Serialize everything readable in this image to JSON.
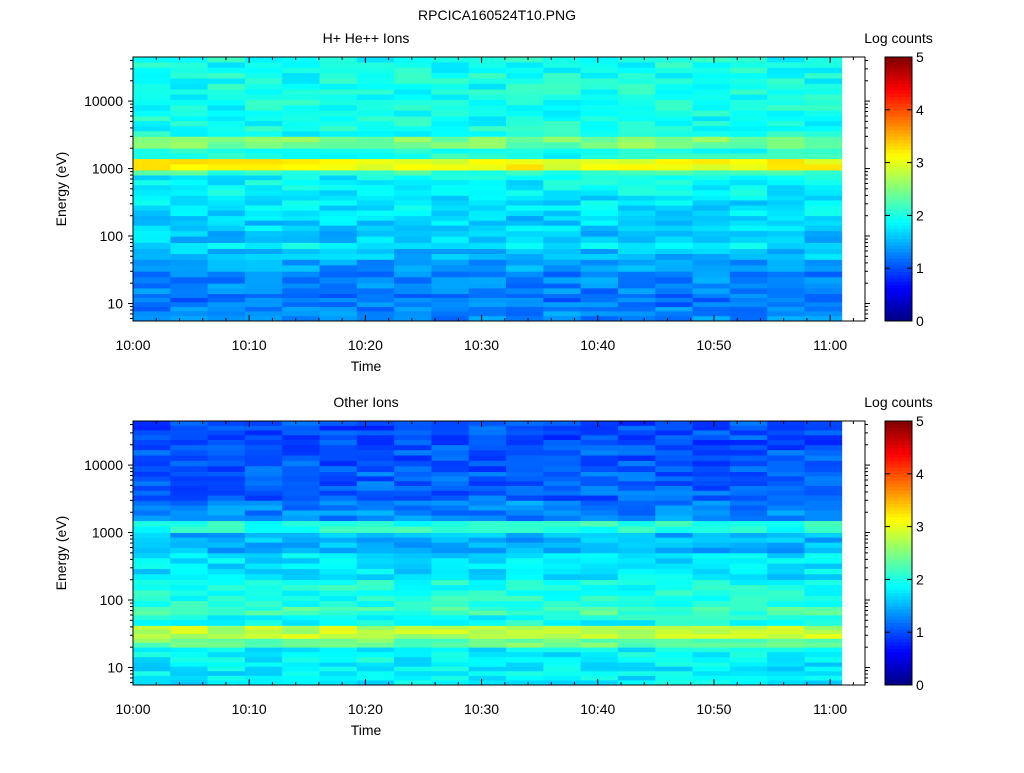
{
  "figure_title": "RPCICA160524T10.PNG",
  "colormap": [
    "#00007f",
    "#0000ff",
    "#007fff",
    "#00ffff",
    "#7fff7f",
    "#ffff00",
    "#ff7f00",
    "#ff0000",
    "#7f0000"
  ],
  "chart_data": [
    {
      "type": "heatmap",
      "title": "H+ He++ Ions",
      "xlabel": "Time",
      "ylabel": "Energy (eV)",
      "yscale": "log",
      "ylim": [
        5.5,
        45000
      ],
      "xlim": [
        "10:00",
        "11:03"
      ],
      "data_end": "11:01",
      "x_ticks": [
        "10:00",
        "10:10",
        "10:20",
        "10:30",
        "10:40",
        "10:50",
        "11:00"
      ],
      "y_ticks": [
        "10",
        "100",
        "1000",
        "10000"
      ],
      "colorbar": {
        "label": "Log counts",
        "min": 0,
        "max": 5,
        "ticks": [
          "0",
          "1",
          "2",
          "3",
          "4",
          "5"
        ]
      },
      "time_bins": 19,
      "bin_minutes": 3.2,
      "energy_bands": [
        {
          "e_low": 5.5,
          "e_high": 9,
          "value": 1.3
        },
        {
          "e_low": 9,
          "e_high": 14,
          "value": 1.2
        },
        {
          "e_low": 14,
          "e_high": 20,
          "value": 1.25
        },
        {
          "e_low": 20,
          "e_high": 30,
          "value": 1.3
        },
        {
          "e_low": 30,
          "e_high": 45,
          "value": 1.4
        },
        {
          "e_low": 45,
          "e_high": 65,
          "value": 1.55
        },
        {
          "e_low": 65,
          "e_high": 80,
          "value": 1.8
        },
        {
          "e_low": 80,
          "e_high": 120,
          "value": 1.6
        },
        {
          "e_low": 120,
          "e_high": 200,
          "value": 1.65
        },
        {
          "e_low": 200,
          "e_high": 400,
          "value": 1.75
        },
        {
          "e_low": 400,
          "e_high": 800,
          "value": 1.85
        },
        {
          "e_low": 800,
          "e_high": 950,
          "value": 2.2
        },
        {
          "e_low": 950,
          "e_high": 1400,
          "value": 3.1
        },
        {
          "e_low": 1400,
          "e_high": 2000,
          "value": 2.0
        },
        {
          "e_low": 2000,
          "e_high": 3000,
          "value": 2.45
        },
        {
          "e_low": 3000,
          "e_high": 6000,
          "value": 1.95
        },
        {
          "e_low": 6000,
          "e_high": 15000,
          "value": 1.95
        },
        {
          "e_low": 15000,
          "e_high": 45000,
          "value": 1.95
        }
      ]
    },
    {
      "type": "heatmap",
      "title": "Other Ions",
      "xlabel": "Time",
      "ylabel": "Energy (eV)",
      "yscale": "log",
      "ylim": [
        5.5,
        45000
      ],
      "xlim": [
        "10:00",
        "11:03"
      ],
      "data_end": "11:01",
      "x_ticks": [
        "10:00",
        "10:10",
        "10:20",
        "10:30",
        "10:40",
        "10:50",
        "11:00"
      ],
      "y_ticks": [
        "10",
        "100",
        "1000",
        "10000"
      ],
      "colorbar": {
        "label": "Log counts",
        "min": 0,
        "max": 5,
        "ticks": [
          "0",
          "1",
          "2",
          "3",
          "4",
          "5"
        ]
      },
      "time_bins": 19,
      "bin_minutes": 3.2,
      "energy_bands": [
        {
          "e_low": 5.5,
          "e_high": 12,
          "value": 1.8
        },
        {
          "e_low": 12,
          "e_high": 20,
          "value": 1.85
        },
        {
          "e_low": 20,
          "e_high": 27,
          "value": 2.4
        },
        {
          "e_low": 27,
          "e_high": 42,
          "value": 2.8
        },
        {
          "e_low": 42,
          "e_high": 60,
          "value": 1.95
        },
        {
          "e_low": 60,
          "e_high": 80,
          "value": 2.2
        },
        {
          "e_low": 80,
          "e_high": 200,
          "value": 2.0
        },
        {
          "e_low": 200,
          "e_high": 500,
          "value": 1.75
        },
        {
          "e_low": 500,
          "e_high": 1000,
          "value": 1.5
        },
        {
          "e_low": 1000,
          "e_high": 1500,
          "value": 2.05
        },
        {
          "e_low": 1500,
          "e_high": 3000,
          "value": 1.3
        },
        {
          "e_low": 3000,
          "e_high": 8000,
          "value": 1.1
        },
        {
          "e_low": 8000,
          "e_high": 20000,
          "value": 1.05
        },
        {
          "e_low": 20000,
          "e_high": 45000,
          "value": 1.0
        }
      ]
    }
  ]
}
